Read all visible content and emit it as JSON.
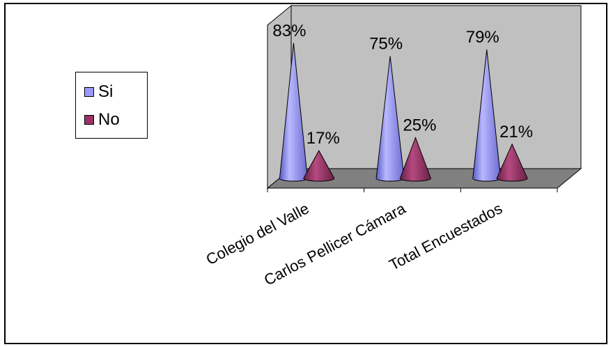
{
  "chart_data": {
    "type": "bar",
    "style": "3d-cone",
    "categories": [
      "Colegio del Valle",
      "Carlos Pellicer Cámara",
      "Total Encuestados"
    ],
    "series": [
      {
        "name": "Si",
        "values": [
          83,
          75,
          79
        ],
        "labels": [
          "83%",
          "75%",
          "79%"
        ],
        "color": "#9999FF"
      },
      {
        "name": "No",
        "values": [
          17,
          25,
          21
        ],
        "labels": [
          "17%",
          "25%",
          "21%"
        ],
        "color": "#993366"
      }
    ],
    "ylim": [
      0,
      100
    ],
    "grid": false,
    "legend_position": "left",
    "colors": {
      "back_wall": "#C0C0C0",
      "floor": "#808080"
    }
  }
}
